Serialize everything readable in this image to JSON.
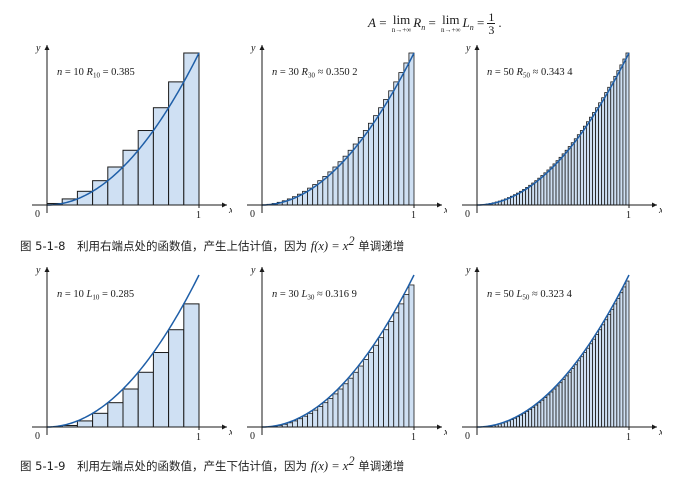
{
  "formula": {
    "lhs": "A",
    "lim_word": "lim",
    "lim_sub": "n→+∞",
    "R": "R",
    "L": "L",
    "sub_n": "n",
    "frac_num": "1",
    "frac_den": "3",
    "end": "."
  },
  "axis_labels": {
    "x": "x",
    "y": "y",
    "origin": "0",
    "one": "1"
  },
  "figures": [
    {
      "caption_number": "图 5-1-8",
      "caption_text": "利用右端点处的函数值，产生上估计值，因为",
      "caption_math": "f(x) = x",
      "caption_sup": "2",
      "caption_tail": "单调递增",
      "method": "right",
      "panels": [
        {
          "n": 10,
          "label_n": "n = 10",
          "sum_symbol": "R",
          "sum_sub": "10",
          "relation": "=",
          "sum_value": "0.385"
        },
        {
          "n": 30,
          "label_n": "n = 30",
          "sum_symbol": "R",
          "sum_sub": "30",
          "relation": "≈",
          "sum_value": "0.350 2"
        },
        {
          "n": 50,
          "label_n": "n = 50",
          "sum_symbol": "R",
          "sum_sub": "50",
          "relation": "≈",
          "sum_value": "0.343 4"
        }
      ]
    },
    {
      "caption_number": "图 5-1-9",
      "caption_text": "利用左端点处的函数值，产生下估计值，因为",
      "caption_math": "f(x) = x",
      "caption_sup": "2",
      "caption_tail": "单调递增",
      "method": "left",
      "panels": [
        {
          "n": 10,
          "label_n": "n = 10",
          "sum_symbol": "L",
          "sum_sub": "10",
          "relation": "=",
          "sum_value": "0.285"
        },
        {
          "n": 30,
          "label_n": "n = 30",
          "sum_symbol": "L",
          "sum_sub": "30",
          "relation": "≈",
          "sum_value": "0.316 9"
        },
        {
          "n": 50,
          "label_n": "n = 50",
          "sum_symbol": "L",
          "sum_sub": "50",
          "relation": "≈",
          "sum_value": "0.323 4"
        }
      ]
    }
  ],
  "chart_data": {
    "type": "bar",
    "function": "x^2",
    "x_range": [
      0,
      1
    ],
    "y_range": [
      0,
      1
    ],
    "colors": {
      "bar_fill": "#cfe0f3",
      "bar_stroke": "#1a1a1a",
      "curve": "#1f5fa8",
      "axis": "#1a1a1a"
    }
  }
}
